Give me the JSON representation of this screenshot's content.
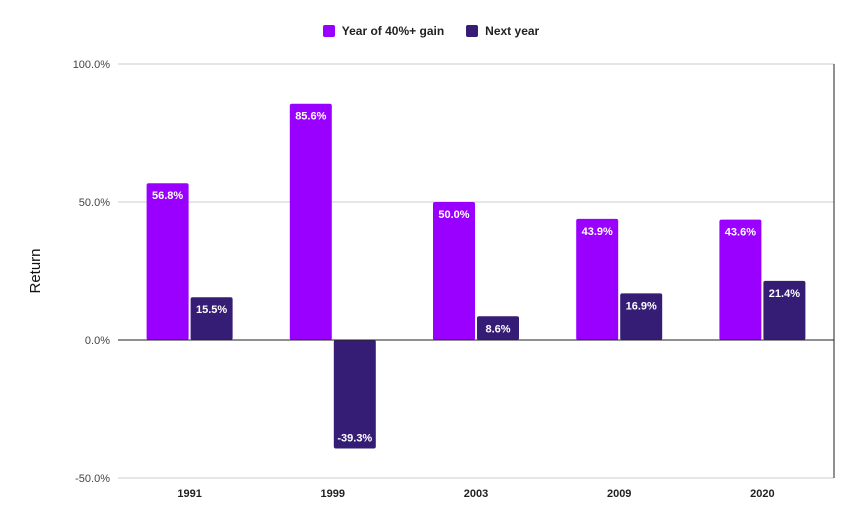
{
  "chart_data": {
    "type": "bar",
    "categories": [
      "1991",
      "1999",
      "2003",
      "2009",
      "2020"
    ],
    "series": [
      {
        "name": "Year of 40%+ gain",
        "values": [
          56.8,
          85.6,
          50.0,
          43.9,
          43.6
        ],
        "labels": [
          "56.8%",
          "85.6%",
          "50.0%",
          "43.9%",
          "43.6%"
        ],
        "color": "#9900ff"
      },
      {
        "name": "Next year",
        "values": [
          15.5,
          -39.3,
          8.6,
          16.9,
          21.4
        ],
        "labels": [
          "15.5%",
          "-39.3%",
          "8.6%",
          "16.9%",
          "21.4%"
        ],
        "color": "#351c75"
      }
    ],
    "title": "",
    "xlabel": "",
    "ylabel": "Return",
    "ylim": [
      -50,
      100
    ],
    "yticks": [
      100,
      50,
      0,
      -50
    ],
    "ytick_labels": [
      "100.0%",
      "50.0%",
      "0.0%",
      "-50.0%"
    ],
    "grid": true,
    "legend_position": "top-center"
  }
}
